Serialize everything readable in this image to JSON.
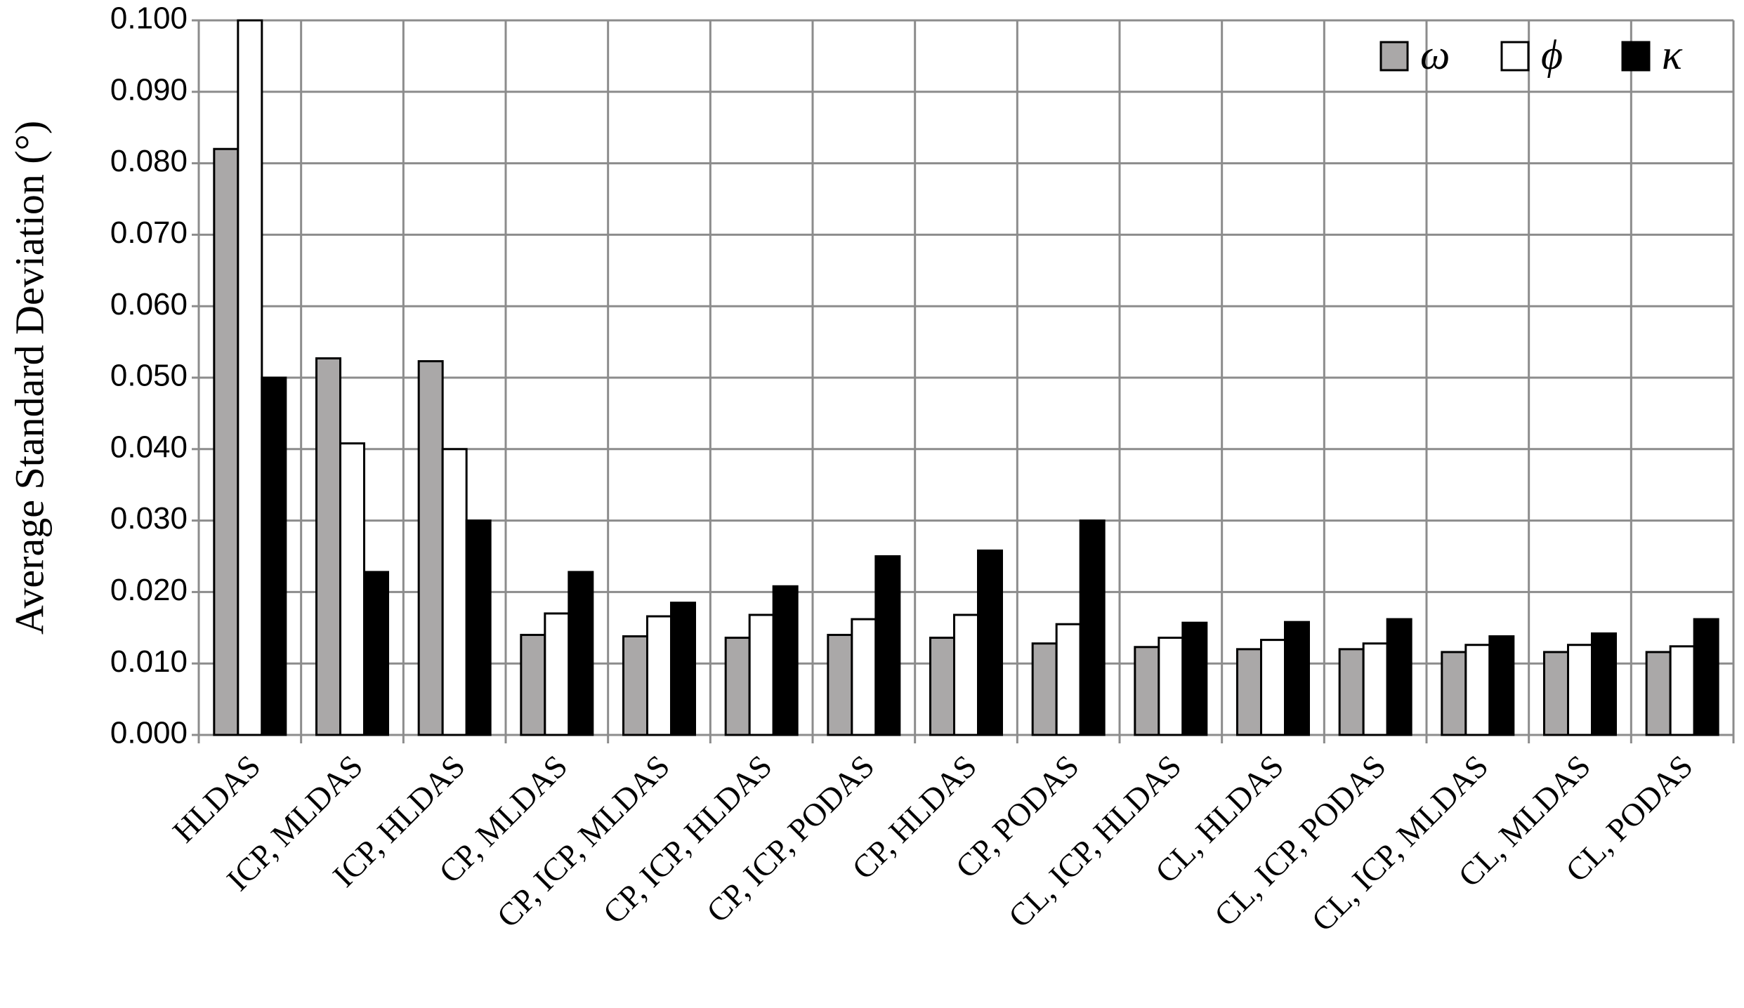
{
  "chart_data": {
    "type": "bar",
    "y_label": "Average Standard Deviation (°)",
    "categories": [
      "HLDAS",
      "ICP, MLDAS",
      "ICP, HLDAS",
      "CP, MLDAS",
      "CP, ICP, MLDAS",
      "CP, ICP, HLDAS",
      "CP, ICP, PODAS",
      "CP, HLDAS",
      "CP, PODAS",
      "CL, ICP, HLDAS",
      "CL, HLDAS",
      "CL, ICP, PODAS",
      "CL, ICP, MLDAS",
      "CL, MLDAS",
      "CL, PODAS"
    ],
    "series": [
      {
        "name": "ω",
        "color": "#aaa8a8",
        "values": [
          0.082,
          0.0527,
          0.0523,
          0.014,
          0.0138,
          0.0136,
          0.014,
          0.0136,
          0.0128,
          0.0123,
          0.012,
          0.012,
          0.0116,
          0.0116,
          0.0116
        ]
      },
      {
        "name": "ϕ",
        "color": "#ffffff",
        "values": [
          0.1,
          0.0408,
          0.04,
          0.017,
          0.0166,
          0.0168,
          0.0162,
          0.0168,
          0.0155,
          0.0136,
          0.0133,
          0.0128,
          0.0126,
          0.0126,
          0.0124
        ]
      },
      {
        "name": "κ",
        "color": "#000000",
        "values": [
          0.05,
          0.0228,
          0.03,
          0.0228,
          0.0185,
          0.0208,
          0.025,
          0.0258,
          0.03,
          0.0157,
          0.0158,
          0.0162,
          0.0138,
          0.0142,
          0.0162
        ]
      }
    ],
    "ylim": [
      0,
      0.1
    ],
    "yticks": [
      {
        "value": 0,
        "label": "0.000"
      },
      {
        "value": 0.01,
        "label": "0.010"
      },
      {
        "value": 0.02,
        "label": "0.020"
      },
      {
        "value": 0.03,
        "label": "0.030"
      },
      {
        "value": 0.04,
        "label": "0.040"
      },
      {
        "value": 0.05,
        "label": "0.050"
      },
      {
        "value": 0.06,
        "label": "0.060"
      },
      {
        "value": 0.07,
        "label": "0.070"
      },
      {
        "value": 0.08,
        "label": "0.080"
      },
      {
        "value": 0.09,
        "label": "0.090"
      },
      {
        "value": 0.1,
        "label": "0.100"
      }
    ],
    "grid": true,
    "legend": "top-right"
  }
}
